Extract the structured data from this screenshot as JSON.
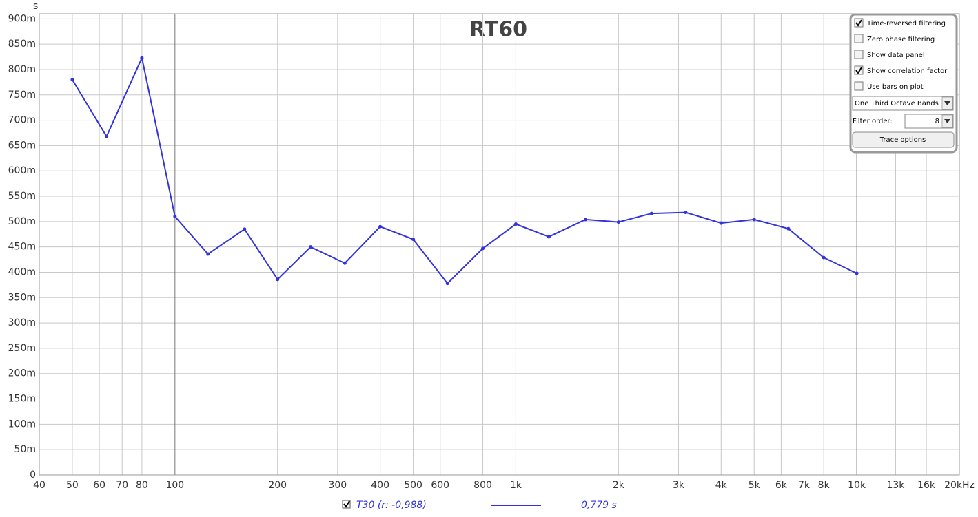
{
  "chart_data": {
    "type": "line",
    "title": "RT60",
    "y_unit": "s",
    "x": [
      50,
      63,
      80,
      100,
      125,
      160,
      200,
      250,
      315,
      400,
      500,
      630,
      800,
      1000,
      1250,
      1600,
      2000,
      2500,
      3150,
      4000,
      5000,
      6300,
      8000,
      10000
    ],
    "series": [
      {
        "name": "T30 (r: -0,988)",
        "color": "#3333dd",
        "legend_value": "0,779 s",
        "values": [
          0.78,
          0.668,
          0.823,
          0.51,
          0.436,
          0.485,
          0.386,
          0.45,
          0.418,
          0.49,
          0.465,
          0.378,
          0.447,
          0.495,
          0.47,
          0.504,
          0.499,
          0.516,
          0.518,
          0.497,
          0.504,
          0.486,
          0.429,
          0.398
        ]
      }
    ],
    "xscale": "log",
    "xlim": [
      40,
      20000
    ],
    "ylim": [
      0,
      0.91
    ],
    "xticks": [
      40,
      50,
      60,
      70,
      80,
      100,
      200,
      300,
      400,
      500,
      600,
      800,
      {
        "value": 1000,
        "label": "1k"
      },
      {
        "value": 2000,
        "label": "2k"
      },
      {
        "value": 3000,
        "label": "3k"
      },
      {
        "value": 4000,
        "label": "4k"
      },
      {
        "value": 5000,
        "label": "5k"
      },
      {
        "value": 6000,
        "label": "6k"
      },
      {
        "value": 7000,
        "label": "7k"
      },
      {
        "value": 8000,
        "label": "8k"
      },
      {
        "value": 10000,
        "label": "10k"
      },
      {
        "value": 13000,
        "label": "13k"
      },
      {
        "value": 16000,
        "label": "16k"
      },
      {
        "value": 20000,
        "label": "20kHz"
      }
    ],
    "yticks": [
      0,
      {
        "value": 0.05,
        "label": "50m"
      },
      {
        "value": 0.1,
        "label": "100m"
      },
      {
        "value": 0.15,
        "label": "150m"
      },
      {
        "value": 0.2,
        "label": "200m"
      },
      {
        "value": 0.25,
        "label": "250m"
      },
      {
        "value": 0.3,
        "label": "300m"
      },
      {
        "value": 0.35,
        "label": "350m"
      },
      {
        "value": 0.4,
        "label": "400m"
      },
      {
        "value": 0.45,
        "label": "450m"
      },
      {
        "value": 0.5,
        "label": "500m"
      },
      {
        "value": 0.55,
        "label": "550m"
      },
      {
        "value": 0.6,
        "label": "600m"
      },
      {
        "value": 0.65,
        "label": "650m"
      },
      {
        "value": 0.7,
        "label": "700m"
      },
      {
        "value": 0.75,
        "label": "750m"
      },
      {
        "value": 0.8,
        "label": "800m"
      },
      {
        "value": 0.85,
        "label": "850m"
      },
      {
        "value": 0.9,
        "label": "900m"
      }
    ],
    "grid": true
  },
  "panel": {
    "checkboxes": [
      {
        "label": "Time-reversed filtering",
        "checked": true
      },
      {
        "label": "Zero phase filtering",
        "checked": false
      },
      {
        "label": "Show data panel",
        "checked": false
      },
      {
        "label": "Show correlation factor",
        "checked": true
      },
      {
        "label": "Use bars on plot",
        "checked": false
      }
    ],
    "dropdown": "One Third Octave Bands",
    "filter_order_label": "Filter order:",
    "filter_order": "8",
    "button": "Trace options"
  }
}
